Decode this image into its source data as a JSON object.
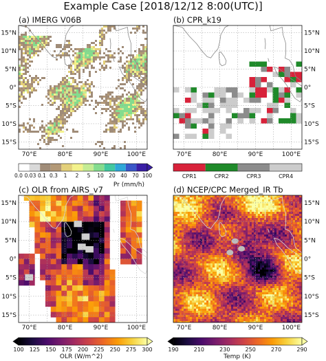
{
  "figure": {
    "title": "Example Case [2018/12/12 8:00(UTC)]"
  },
  "map_ticks": {
    "lon": [
      "70°E",
      "80°E",
      "90°E",
      "100°E"
    ],
    "lat": [
      "15°N",
      "10°N",
      "5°N",
      "0°",
      "5°S",
      "10°S",
      "15°S"
    ]
  },
  "chart_data": [
    {
      "type": "heatmap",
      "panel": "(a)",
      "title": "(a) IMERG V06B",
      "lon_range": [
        67,
        103
      ],
      "lat_range": [
        -17,
        17
      ],
      "colorbar": {
        "label": "Pr (mm/h)",
        "ticks": [
          "0.0",
          "0.03",
          "0.1",
          "0.3",
          "1",
          "2",
          "5",
          "10",
          "20",
          "40",
          "70",
          "100"
        ],
        "colors": [
          "#ffffff",
          "#d9d9d9",
          "#a08c78",
          "#b39977",
          "#e3d07a",
          "#f3f28c",
          "#c4ec94",
          "#84dc8e",
          "#42c8a0",
          "#2fa7d8",
          "#3a57c9",
          "#3a1fa6"
        ],
        "extend": "max"
      }
    },
    {
      "type": "heatmap",
      "panel": "(b)",
      "title": "(b) CPR_k19",
      "lon_range": [
        67,
        103
      ],
      "lat_range": [
        -17,
        17
      ],
      "colorbar": {
        "categories": [
          "CPR1",
          "CPR2",
          "CPR3",
          "CPR4"
        ],
        "colors": [
          "#d8223a",
          "#1f8a2a",
          "#8c8c8c",
          "#cccccc"
        ]
      }
    },
    {
      "type": "heatmap",
      "panel": "(c)",
      "title": "(c) OLR from AIRS_v7",
      "lon_range": [
        67,
        103
      ],
      "lat_range": [
        -17,
        17
      ],
      "colorbar": {
        "label": "OLR (W/m^2)",
        "ticks": [
          "100",
          "125",
          "150",
          "175",
          "200",
          "225",
          "250",
          "275",
          "300"
        ],
        "range": [
          100,
          300
        ],
        "colormap": "inferno",
        "extend": "both"
      }
    },
    {
      "type": "heatmap",
      "panel": "(d)",
      "title": "(d) NCEP/CPC Merged_IR Tb",
      "lon_range": [
        67,
        103
      ],
      "lat_range": [
        -17,
        17
      ],
      "colorbar": {
        "label": "Temp (K)",
        "ticks": [
          "190",
          "210",
          "230",
          "250",
          "270",
          "290"
        ],
        "range": [
          190,
          290
        ],
        "colormap": "inferno",
        "extend": "both"
      }
    }
  ],
  "colors": {
    "inferno": [
      "#000004",
      "#1b0c41",
      "#4a0c6b",
      "#781c6d",
      "#a52c60",
      "#cf4446",
      "#ed6925",
      "#fb9b06",
      "#f7d13d",
      "#fcffa4"
    ]
  }
}
